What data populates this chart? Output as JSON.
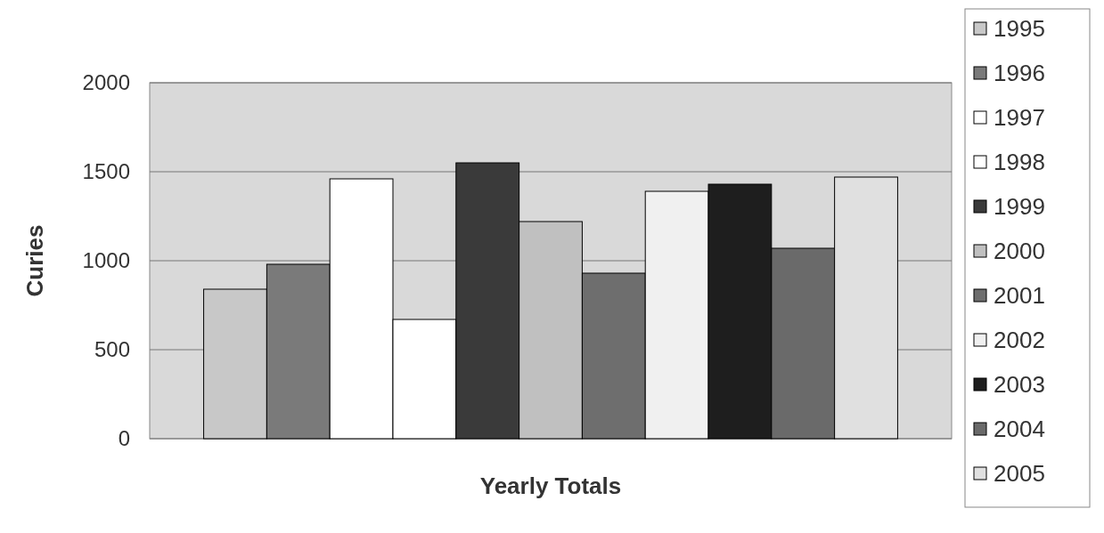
{
  "chart_data": {
    "type": "bar",
    "xlabel": "Yearly Totals",
    "ylabel": "Curies",
    "categories": [
      null
    ],
    "ylim": [
      0,
      2000
    ],
    "yticks": [
      0,
      500,
      1000,
      1500,
      2000
    ],
    "grid": "y",
    "legend": "right",
    "series": [
      {
        "name": "1995",
        "color": "#c8c8c8",
        "values": [
          840
        ]
      },
      {
        "name": "1996",
        "color": "#7a7a7a",
        "values": [
          980
        ]
      },
      {
        "name": "1997",
        "color": "#ffffff",
        "values": [
          1460
        ]
      },
      {
        "name": "1998",
        "color": "#ffffff",
        "values": [
          670
        ]
      },
      {
        "name": "1999",
        "color": "#3a3a3a",
        "values": [
          1550
        ]
      },
      {
        "name": "2000",
        "color": "#c0c0c0",
        "values": [
          1220
        ]
      },
      {
        "name": "2001",
        "color": "#6e6e6e",
        "values": [
          930
        ]
      },
      {
        "name": "2002",
        "color": "#f0f0f0",
        "values": [
          1390
        ]
      },
      {
        "name": "2003",
        "color": "#1e1e1e",
        "values": [
          1430
        ]
      },
      {
        "name": "2004",
        "color": "#6a6a6a",
        "values": [
          1070
        ]
      },
      {
        "name": "2005",
        "color": "#e0e0e0",
        "values": [
          1470
        ]
      }
    ]
  }
}
